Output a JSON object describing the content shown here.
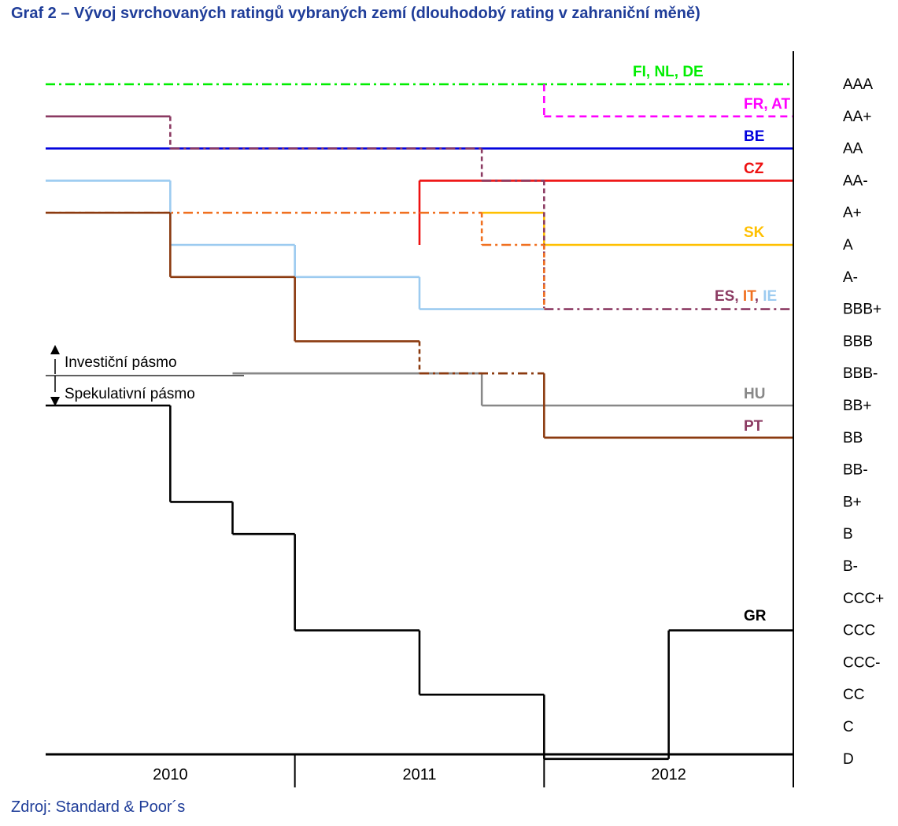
{
  "title": "Graf 2 – Vývoj svrchovaných ratingů vybraných zemí (dlouhodobý rating v zahraniční měně)",
  "source": "Zdroj: Standard & Poor´s",
  "chart_data": {
    "type": "line",
    "step": true,
    "x_range": [
      2009.5,
      2012.5
    ],
    "x_ticks": [
      2010,
      2011,
      2012
    ],
    "rating_scale": [
      "AAA",
      "AA+",
      "AA",
      "AA-",
      "A+",
      "A",
      "A-",
      "BBB+",
      "BBB",
      "BBB-",
      "BB+",
      "BB",
      "BB-",
      "B+",
      "B",
      "B-",
      "CCC+",
      "CCC",
      "CCC-",
      "CC",
      "C",
      "D"
    ],
    "band_labels": {
      "investment": "Investiční pásmo",
      "speculative": "Spekulativní pásmo"
    },
    "series": [
      {
        "name": "FI, NL, DE",
        "color": "#00ee00",
        "dash": "dashdot",
        "points": [
          [
            2009.5,
            "AAA"
          ],
          [
            2012.5,
            "AAA"
          ]
        ]
      },
      {
        "name": "FR, AT",
        "color": "#ff00ff",
        "dash": "dash",
        "points": [
          [
            2011.5,
            "AAA"
          ],
          [
            2011.5,
            "AA+"
          ],
          [
            2012.5,
            "AA+"
          ]
        ]
      },
      {
        "name": "BE",
        "color": "#0000dd",
        "dash": "solid",
        "points": [
          [
            2009.5,
            "AA"
          ],
          [
            2012.5,
            "AA"
          ]
        ]
      },
      {
        "name": "CZ",
        "color": "#ee1111",
        "dash": "solid",
        "points": [
          [
            2011,
            "A"
          ],
          [
            2011,
            "AA-"
          ],
          [
            2012.5,
            "AA-"
          ]
        ]
      },
      {
        "name": "SK",
        "color": "#ffc000",
        "dash": "solid",
        "points": [
          [
            2011.25,
            "A+"
          ],
          [
            2011.5,
            "A+"
          ],
          [
            2011.5,
            "A"
          ],
          [
            2012.5,
            "A"
          ]
        ]
      },
      {
        "name": "ES",
        "color": "#8b3a62",
        "dash": "mixed",
        "points": [
          [
            2009.5,
            "AA+"
          ],
          [
            2010,
            "AA+"
          ],
          [
            2010,
            "AA"
          ],
          [
            2011.25,
            "AA"
          ],
          [
            2011.25,
            "AA-"
          ],
          [
            2011.5,
            "AA-"
          ],
          [
            2011.5,
            "BBB+"
          ],
          [
            2012.5,
            "BBB+"
          ]
        ]
      },
      {
        "name": "IT",
        "color": "#f07020",
        "dash": "mixed",
        "points": [
          [
            2009.5,
            "A+"
          ],
          [
            2011.25,
            "A+"
          ],
          [
            2011.25,
            "A"
          ],
          [
            2011.5,
            "A"
          ],
          [
            2011.5,
            "BBB+"
          ]
        ]
      },
      {
        "name": "IE",
        "color": "#9ccbf0",
        "dash": "solid",
        "points": [
          [
            2009.5,
            "AA-"
          ],
          [
            2010,
            "AA-"
          ],
          [
            2010,
            "A"
          ],
          [
            2010.5,
            "A"
          ],
          [
            2010.5,
            "A-"
          ],
          [
            2011,
            "A-"
          ],
          [
            2011,
            "BBB+"
          ],
          [
            2011.5,
            "BBB+"
          ]
        ]
      },
      {
        "name": "HU",
        "color": "#888888",
        "dash": "solid",
        "points": [
          [
            2010.25,
            "BBB-"
          ],
          [
            2011.25,
            "BBB-"
          ],
          [
            2011.25,
            "BB+"
          ],
          [
            2012.5,
            "BB+"
          ]
        ]
      },
      {
        "name": "PT",
        "color": "#8b3a0f",
        "dash": "mixed",
        "points": [
          [
            2009.5,
            "A+"
          ],
          [
            2010,
            "A+"
          ],
          [
            2010,
            "A-"
          ],
          [
            2010.5,
            "A-"
          ],
          [
            2010.5,
            "BBB"
          ],
          [
            2011,
            "BBB"
          ],
          [
            2011,
            "BBB-"
          ],
          [
            2011.5,
            "BBB-"
          ],
          [
            2011.5,
            "BB"
          ],
          [
            2012.5,
            "BB"
          ]
        ]
      },
      {
        "name": "GR",
        "color": "#000000",
        "dash": "solid",
        "points": [
          [
            2009.5,
            "BB+"
          ],
          [
            2010,
            "BB+"
          ],
          [
            2010,
            "B+"
          ],
          [
            2010.25,
            "B+"
          ],
          [
            2010.25,
            "B"
          ],
          [
            2010.5,
            "B"
          ],
          [
            2010.5,
            "CCC"
          ],
          [
            2011,
            "CCC"
          ],
          [
            2011,
            "CC"
          ],
          [
            2011.5,
            "CC"
          ],
          [
            2011.5,
            "D"
          ],
          [
            2012,
            "D"
          ],
          [
            2012,
            "CCC"
          ],
          [
            2012.5,
            "CCC"
          ]
        ]
      }
    ]
  }
}
